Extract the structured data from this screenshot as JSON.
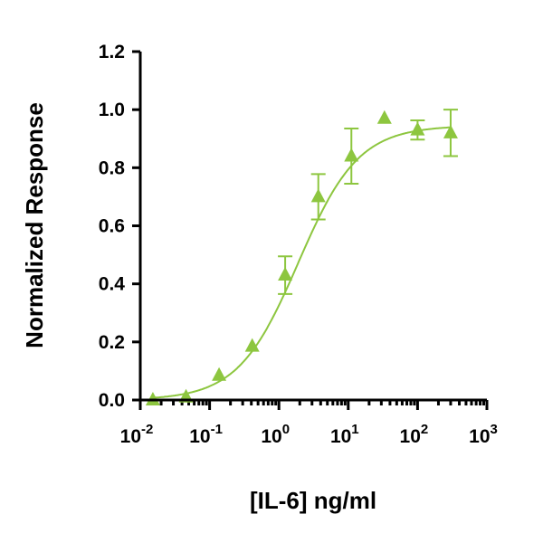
{
  "chart_data": {
    "type": "scatter",
    "xlabel": "[IL-6] ng/ml",
    "ylabel": "Normalized Response",
    "x_scale": "log",
    "xlim": [
      0.01,
      1000
    ],
    "ylim": [
      0.0,
      1.2
    ],
    "x_ticks": [
      {
        "value": 0.01,
        "base": "10",
        "exp": "-2"
      },
      {
        "value": 0.1,
        "base": "10",
        "exp": "-1"
      },
      {
        "value": 1,
        "base": "10",
        "exp": "0"
      },
      {
        "value": 10,
        "base": "10",
        "exp": "1"
      },
      {
        "value": 100,
        "base": "10",
        "exp": "2"
      },
      {
        "value": 1000,
        "base": "10",
        "exp": "3"
      }
    ],
    "y_ticks": [
      "0.0",
      "0.2",
      "0.4",
      "0.6",
      "0.8",
      "1.0",
      "1.2"
    ],
    "grid": false,
    "color": "#8dc63f",
    "marker": "triangle",
    "points": [
      {
        "x": 0.0152,
        "y": 0.0,
        "err": null
      },
      {
        "x": 0.0457,
        "y": 0.01,
        "err": null
      },
      {
        "x": 0.137,
        "y": 0.085,
        "err": null
      },
      {
        "x": 0.412,
        "y": 0.185,
        "err": null
      },
      {
        "x": 1.23,
        "y": 0.43,
        "err": 0.065
      },
      {
        "x": 3.7,
        "y": 0.7,
        "err": 0.078
      },
      {
        "x": 11.1,
        "y": 0.84,
        "err": 0.095
      },
      {
        "x": 33.3,
        "y": 0.97,
        "err": null
      },
      {
        "x": 100,
        "y": 0.93,
        "err": 0.033
      },
      {
        "x": 300,
        "y": 0.92,
        "err": 0.08
      }
    ],
    "fit": {
      "type": "4PL",
      "bottom": 0.0,
      "top": 0.945,
      "ec50": 1.9,
      "hill": 1.0
    }
  }
}
